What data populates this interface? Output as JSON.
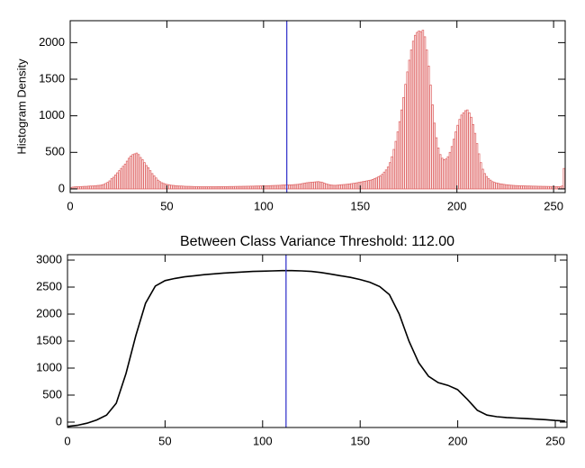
{
  "chart_data": [
    {
      "type": "bar",
      "ylabel": "Histogram Density",
      "color": "#e06a6a",
      "threshold": 112,
      "threshold_color": "#3a3acc",
      "xlim": [
        0,
        256
      ],
      "xticks": [
        0,
        50,
        100,
        150,
        200,
        250
      ],
      "ylim": [
        -50,
        2300
      ],
      "yticks": [
        0,
        500,
        1000,
        1500,
        2000
      ],
      "x": [
        0,
        1,
        2,
        3,
        4,
        5,
        6,
        7,
        8,
        9,
        10,
        11,
        12,
        13,
        14,
        15,
        16,
        17,
        18,
        19,
        20,
        21,
        22,
        23,
        24,
        25,
        26,
        27,
        28,
        29,
        30,
        31,
        32,
        33,
        34,
        35,
        36,
        37,
        38,
        39,
        40,
        41,
        42,
        43,
        44,
        45,
        46,
        47,
        48,
        49,
        50,
        51,
        52,
        53,
        54,
        55,
        56,
        57,
        58,
        59,
        60,
        61,
        62,
        63,
        64,
        65,
        66,
        67,
        68,
        69,
        70,
        71,
        72,
        73,
        74,
        75,
        76,
        77,
        78,
        79,
        80,
        81,
        82,
        83,
        84,
        85,
        86,
        87,
        88,
        89,
        90,
        91,
        92,
        93,
        94,
        95,
        96,
        97,
        98,
        99,
        100,
        101,
        102,
        103,
        104,
        105,
        106,
        107,
        108,
        109,
        110,
        111,
        112,
        113,
        114,
        115,
        116,
        117,
        118,
        119,
        120,
        121,
        122,
        123,
        124,
        125,
        126,
        127,
        128,
        129,
        130,
        131,
        132,
        133,
        134,
        135,
        136,
        137,
        138,
        139,
        140,
        141,
        142,
        143,
        144,
        145,
        146,
        147,
        148,
        149,
        150,
        151,
        152,
        153,
        154,
        155,
        156,
        157,
        158,
        159,
        160,
        161,
        162,
        163,
        164,
        165,
        166,
        167,
        168,
        169,
        170,
        171,
        172,
        173,
        174,
        175,
        176,
        177,
        178,
        179,
        180,
        181,
        182,
        183,
        184,
        185,
        186,
        187,
        188,
        189,
        190,
        191,
        192,
        193,
        194,
        195,
        196,
        197,
        198,
        199,
        200,
        201,
        202,
        203,
        204,
        205,
        206,
        207,
        208,
        209,
        210,
        211,
        212,
        213,
        214,
        215,
        216,
        217,
        218,
        219,
        220,
        221,
        222,
        223,
        224,
        225,
        226,
        227,
        228,
        229,
        230,
        231,
        232,
        233,
        234,
        235,
        236,
        237,
        238,
        239,
        240,
        241,
        242,
        243,
        244,
        245,
        246,
        247,
        248,
        249,
        250,
        251,
        252,
        253,
        254,
        255
      ],
      "values": [
        20,
        25,
        28,
        30,
        30,
        32,
        33,
        35,
        35,
        38,
        40,
        40,
        42,
        45,
        48,
        50,
        55,
        62,
        75,
        90,
        110,
        140,
        160,
        190,
        220,
        250,
        280,
        310,
        340,
        380,
        420,
        450,
        470,
        480,
        490,
        470,
        430,
        400,
        360,
        320,
        290,
        250,
        210,
        180,
        150,
        120,
        100,
        85,
        75,
        65,
        60,
        55,
        50,
        48,
        45,
        42,
        40,
        40,
        38,
        36,
        35,
        35,
        34,
        33,
        32,
        32,
        31,
        30,
        30,
        30,
        30,
        30,
        30,
        30,
        30,
        30,
        31,
        31,
        31,
        32,
        32,
        32,
        33,
        33,
        33,
        34,
        34,
        35,
        35,
        36,
        36,
        37,
        37,
        38,
        38,
        39,
        40,
        40,
        41,
        42,
        42,
        43,
        44,
        45,
        46,
        47,
        48,
        49,
        50,
        52,
        54,
        55,
        55,
        56,
        56,
        58,
        60,
        62,
        65,
        70,
        75,
        80,
        85,
        88,
        90,
        92,
        95,
        98,
        100,
        95,
        90,
        80,
        70,
        62,
        56,
        52,
        50,
        50,
        52,
        55,
        58,
        60,
        62,
        65,
        68,
        72,
        76,
        80,
        85,
        90,
        95,
        100,
        105,
        110,
        115,
        120,
        130,
        140,
        150,
        165,
        180,
        200,
        230,
        260,
        300,
        360,
        440,
        540,
        650,
        780,
        920,
        1080,
        1250,
        1430,
        1600,
        1760,
        1900,
        2020,
        2100,
        2140,
        2160,
        2150,
        2170,
        2080,
        1900,
        1680,
        1420,
        1150,
        900,
        700,
        560,
        470,
        420,
        400,
        410,
        440,
        500,
        580,
        680,
        780,
        870,
        950,
        1010,
        1040,
        1070,
        1080,
        1040,
        980,
        880,
        760,
        620,
        480,
        360,
        270,
        210,
        170,
        140,
        120,
        100,
        90,
        82,
        76,
        70,
        66,
        62,
        58,
        55,
        52,
        50,
        48,
        46,
        45,
        44,
        43,
        42,
        41,
        40,
        40,
        39,
        38,
        38,
        37,
        36,
        36,
        35,
        35,
        34,
        34,
        33,
        33,
        32,
        32,
        31,
        30,
        40,
        280
      ]
    },
    {
      "type": "line",
      "title": "Between Class Variance Threshold: 112.00",
      "color": "#000000",
      "threshold": 112,
      "threshold_color": "#3a3acc",
      "xlim": [
        0,
        256
      ],
      "xticks": [
        0,
        50,
        100,
        150,
        200,
        250
      ],
      "ylim": [
        -100,
        3100
      ],
      "yticks": [
        0,
        500,
        1000,
        1500,
        2000,
        2500,
        3000
      ],
      "x": [
        0,
        5,
        10,
        15,
        20,
        25,
        30,
        35,
        40,
        45,
        50,
        55,
        60,
        65,
        70,
        75,
        80,
        85,
        90,
        95,
        100,
        105,
        110,
        115,
        120,
        125,
        130,
        135,
        140,
        145,
        150,
        155,
        160,
        165,
        170,
        175,
        180,
        185,
        190,
        195,
        200,
        205,
        210,
        215,
        220,
        225,
        230,
        235,
        240,
        245,
        250,
        255
      ],
      "values": [
        -80,
        -60,
        -20,
        40,
        130,
        350,
        900,
        1600,
        2200,
        2520,
        2620,
        2660,
        2690,
        2710,
        2730,
        2745,
        2760,
        2770,
        2780,
        2790,
        2795,
        2800,
        2805,
        2805,
        2800,
        2790,
        2770,
        2740,
        2710,
        2680,
        2640,
        2590,
        2510,
        2360,
        2000,
        1500,
        1100,
        850,
        730,
        680,
        600,
        420,
        220,
        130,
        100,
        85,
        75,
        65,
        55,
        45,
        30,
        20
      ]
    }
  ]
}
